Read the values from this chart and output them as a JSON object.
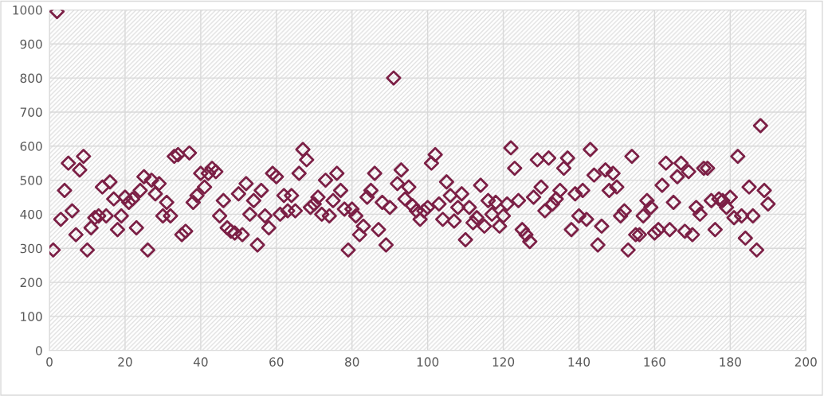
{
  "chart_data": {
    "type": "scatter",
    "marker": "diamond",
    "grid": true,
    "xlim": [
      0,
      200
    ],
    "xticks": [
      0,
      20,
      40,
      60,
      80,
      100,
      120,
      140,
      160,
      180,
      200
    ],
    "ylim": [
      0,
      1000
    ],
    "yticks": [
      0,
      100,
      200,
      300,
      400,
      500,
      600,
      700,
      800,
      900,
      1000
    ],
    "series": [
      {
        "color": "#7b1f45",
        "x": [
          1,
          2,
          3,
          4,
          5,
          6,
          7,
          8,
          9,
          10,
          11,
          12,
          13,
          14,
          15,
          16,
          17,
          18,
          19,
          20,
          21,
          22,
          23,
          24,
          25,
          26,
          27,
          28,
          29,
          30,
          31,
          32,
          33,
          34,
          35,
          36,
          37,
          38,
          39,
          40,
          41,
          42,
          43,
          44,
          45,
          46,
          47,
          48,
          49,
          50,
          51,
          52,
          53,
          54,
          55,
          56,
          57,
          58,
          59,
          60,
          61,
          62,
          63,
          64,
          65,
          66,
          67,
          68,
          69,
          70,
          71,
          72,
          73,
          74,
          75,
          76,
          77,
          78,
          79,
          80,
          81,
          82,
          83,
          84,
          85,
          86,
          87,
          88,
          89,
          90,
          91,
          92,
          93,
          94,
          95,
          96,
          97,
          98,
          99,
          100,
          101,
          102,
          103,
          104,
          105,
          106,
          107,
          108,
          109,
          110,
          111,
          112,
          113,
          114,
          115,
          116,
          117,
          118,
          119,
          120,
          121,
          122,
          123,
          124,
          125,
          126,
          127,
          128,
          129,
          130,
          131,
          132,
          133,
          134,
          135,
          136,
          137,
          138,
          139,
          140,
          141,
          142,
          143,
          144,
          145,
          146,
          147,
          148,
          149,
          150,
          151,
          152,
          153,
          154,
          155,
          156,
          157,
          158,
          159,
          160,
          161,
          162,
          163,
          164,
          165,
          166,
          167,
          168,
          169,
          170,
          171,
          172,
          173,
          174,
          175,
          176,
          177,
          178,
          179,
          180,
          181,
          182,
          183,
          184,
          185,
          186,
          187,
          188,
          189,
          190
        ],
        "values": [
          295,
          995,
          385,
          470,
          550,
          410,
          340,
          530,
          570,
          295,
          360,
          390,
          395,
          480,
          395,
          495,
          445,
          355,
          395,
          450,
          435,
          445,
          360,
          470,
          510,
          295,
          500,
          460,
          490,
          395,
          435,
          395,
          570,
          575,
          340,
          350,
          580,
          435,
          455,
          520,
          480,
          520,
          535,
          525,
          395,
          440,
          360,
          350,
          345,
          460,
          340,
          490,
          400,
          440,
          310,
          470,
          395,
          360,
          520,
          510,
          400,
          455,
          410,
          455,
          410,
          520,
          590,
          560,
          420,
          430,
          450,
          400,
          500,
          395,
          440,
          520,
          470,
          415,
          295,
          415,
          395,
          340,
          365,
          450,
          470,
          520,
          355,
          435,
          310,
          420,
          800,
          490,
          530,
          445,
          480,
          425,
          410,
          385,
          410,
          420,
          550,
          575,
          430,
          385,
          495,
          455,
          380,
          420,
          460,
          325,
          420,
          375,
          390,
          485,
          365,
          440,
          400,
          435,
          365,
          395,
          430,
          595,
          535,
          440,
          355,
          340,
          320,
          450,
          560,
          480,
          410,
          565,
          430,
          445,
          470,
          535,
          565,
          355,
          460,
          395,
          470,
          385,
          590,
          515,
          310,
          365,
          530,
          470,
          520,
          480,
          395,
          410,
          295,
          570,
          340,
          340,
          395,
          440,
          420,
          345,
          355,
          485,
          550,
          355,
          435,
          510,
          550,
          350,
          525,
          340,
          420,
          400,
          535,
          535,
          440,
          355,
          445,
          440,
          420,
          450,
          390,
          570,
          395,
          330,
          480,
          395,
          295,
          660,
          470,
          430
        ]
      }
    ]
  }
}
